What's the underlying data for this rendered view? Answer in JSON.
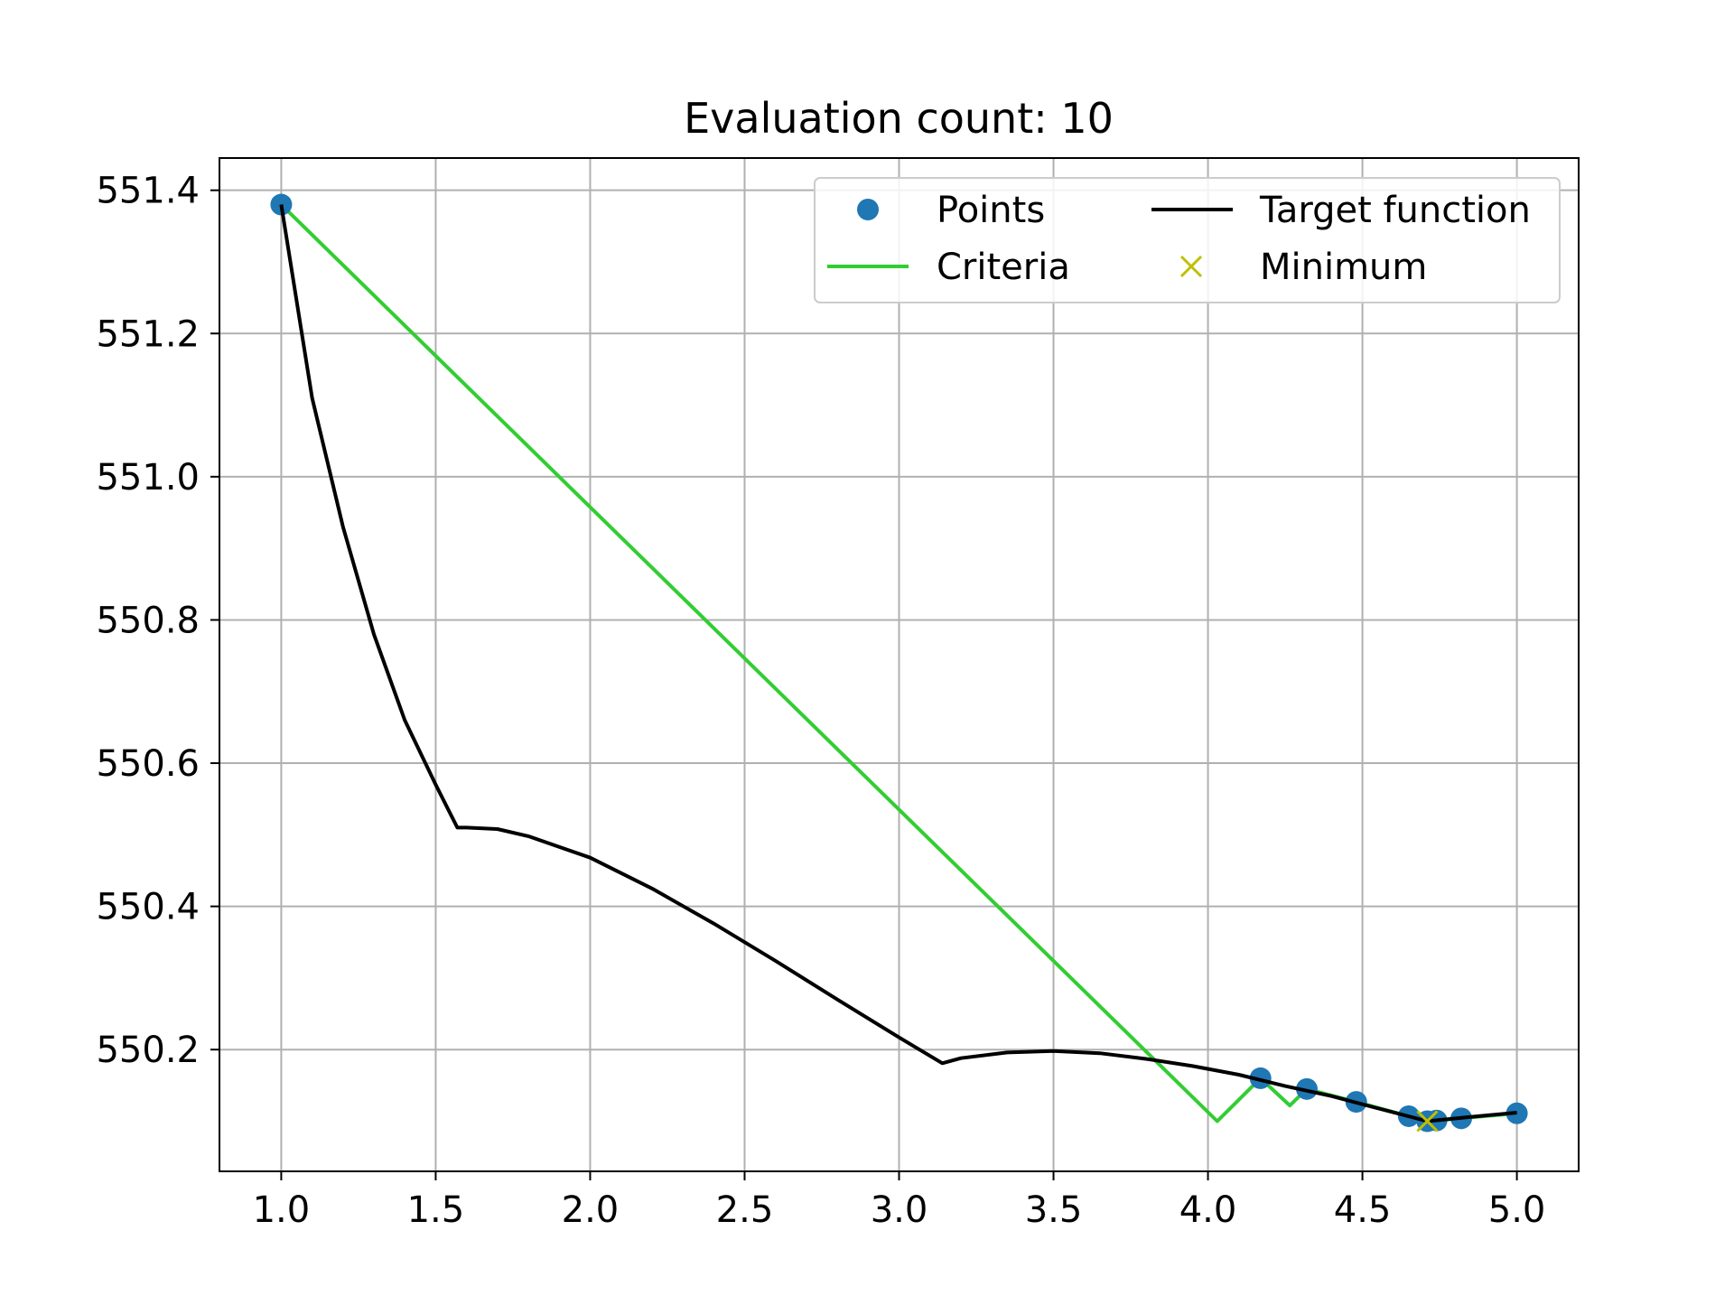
{
  "chart_data": {
    "type": "line",
    "title": "Evaluation count: 10",
    "xlabel": "",
    "ylabel": "",
    "xlim": [
      0.8,
      5.2
    ],
    "ylim": [
      550.03,
      551.445
    ],
    "xticks": [
      1.0,
      1.5,
      2.0,
      2.5,
      3.0,
      3.5,
      4.0,
      4.5,
      5.0
    ],
    "yticks": [
      550.2,
      550.4,
      550.6,
      550.8,
      551.0,
      551.2,
      551.4
    ],
    "xtick_labels": [
      "1.0",
      "1.5",
      "2.0",
      "2.5",
      "3.0",
      "3.5",
      "4.0",
      "4.5",
      "5.0"
    ],
    "ytick_labels": [
      "550.2",
      "550.4",
      "550.6",
      "550.8",
      "551.0",
      "551.2",
      "551.4"
    ],
    "grid": true,
    "legend_position": "top-right",
    "legend": [
      {
        "label": "Points",
        "marker": "circle",
        "color": "#1f77b4"
      },
      {
        "label": "Target function",
        "marker": "line",
        "color": "#000000"
      },
      {
        "label": "Criteria",
        "marker": "line",
        "color": "#32cd32"
      },
      {
        "label": "Minimum",
        "marker": "x",
        "color": "#bfbf00"
      }
    ],
    "series": [
      {
        "name": "Points",
        "style": "scatter",
        "color": "#1f77b4",
        "x": [
          1.0,
          4.17,
          4.32,
          4.48,
          4.65,
          4.71,
          4.74,
          4.82,
          5.0
        ],
        "y": [
          551.38,
          550.16,
          550.145,
          550.127,
          550.107,
          550.1,
          550.101,
          550.104,
          550.111
        ]
      },
      {
        "name": "Target function",
        "style": "line",
        "color": "#000000",
        "x": [
          1.0,
          1.1,
          1.2,
          1.3,
          1.4,
          1.5,
          1.57,
          1.6,
          1.7,
          1.8,
          2.0,
          2.2,
          2.4,
          2.6,
          2.8,
          3.0,
          3.14,
          3.2,
          3.35,
          3.5,
          3.65,
          3.8,
          3.95,
          4.1,
          4.25,
          4.4,
          4.55,
          4.71,
          4.85,
          5.0
        ],
        "y": [
          551.38,
          551.11,
          550.93,
          550.78,
          550.66,
          550.57,
          550.51,
          550.51,
          550.508,
          550.498,
          550.468,
          550.425,
          550.376,
          550.324,
          550.27,
          550.217,
          550.181,
          550.188,
          550.196,
          550.198,
          550.195,
          550.187,
          550.177,
          550.165,
          550.149,
          550.135,
          550.118,
          550.1,
          550.106,
          550.112
        ]
      },
      {
        "name": "Criteria",
        "style": "line",
        "color": "#32cd32",
        "x": [
          1.0,
          4.03,
          4.17,
          4.265,
          4.32,
          4.48,
          4.65,
          4.71,
          4.74,
          4.82,
          5.0
        ],
        "y": [
          551.38,
          550.1,
          550.16,
          550.122,
          550.145,
          550.127,
          550.107,
          550.1,
          550.101,
          550.104,
          550.111
        ]
      },
      {
        "name": "Minimum",
        "style": "marker-x",
        "color": "#bfbf00",
        "x": [
          4.71
        ],
        "y": [
          550.1
        ]
      }
    ]
  }
}
